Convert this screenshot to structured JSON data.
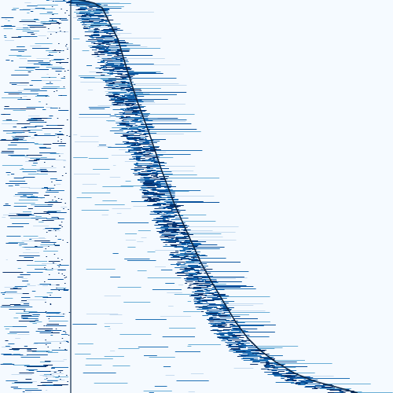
{
  "chart_data": {
    "type": "raster"
  }
}
